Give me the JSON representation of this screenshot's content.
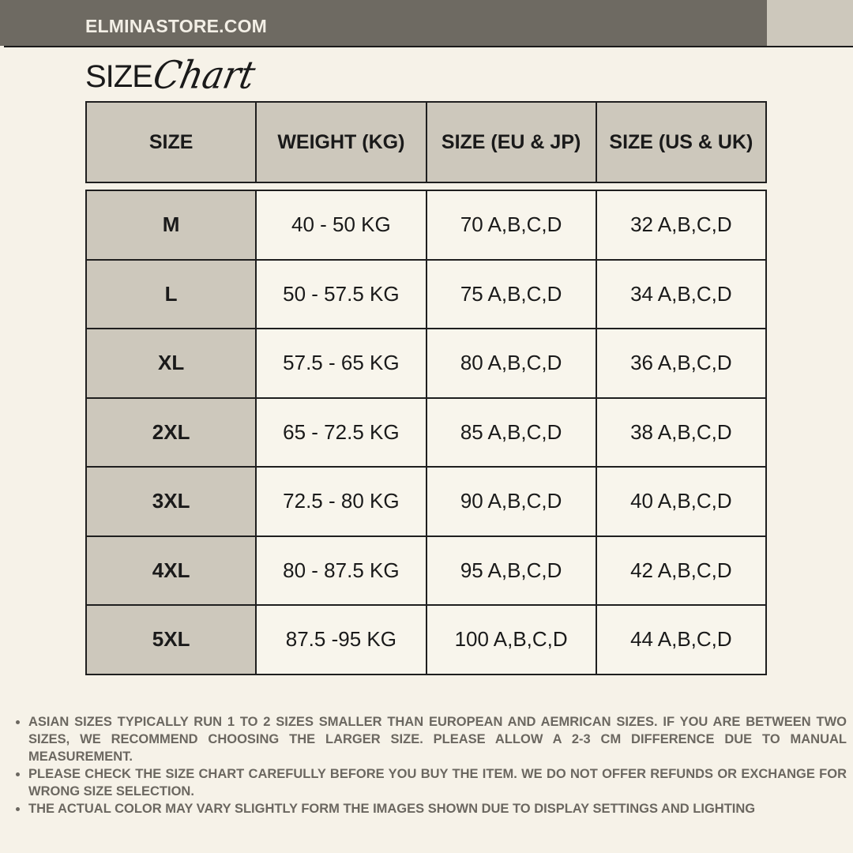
{
  "brand": "ELMINASTORE.COM",
  "title": {
    "size": "SIZE",
    "chart": "Chart"
  },
  "colors": {
    "topbar": "#6e6a62",
    "accent": "#cdc8bc",
    "background": "#f6f2e8",
    "notes": "#6b6760"
  },
  "table": {
    "headers": [
      "SIZE",
      "WEIGHT (KG)",
      "SIZE (EU & JP)",
      "SIZE (US & UK)"
    ],
    "rows": [
      [
        "M",
        "40 - 50 KG",
        "70 A,B,C,D",
        "32 A,B,C,D"
      ],
      [
        "L",
        "50 - 57.5 KG",
        "75 A,B,C,D",
        "34 A,B,C,D"
      ],
      [
        "XL",
        "57.5 - 65 KG",
        "80 A,B,C,D",
        "36 A,B,C,D"
      ],
      [
        "2XL",
        "65 - 72.5 KG",
        "85 A,B,C,D",
        "38 A,B,C,D"
      ],
      [
        "3XL",
        "72.5 - 80 KG",
        "90 A,B,C,D",
        "40 A,B,C,D"
      ],
      [
        "4XL",
        "80 - 87.5 KG",
        "95 A,B,C,D",
        "42 A,B,C,D"
      ],
      [
        "5XL",
        "87.5 -95 KG",
        "100 A,B,C,D",
        "44 A,B,C,D"
      ]
    ]
  },
  "notes": [
    "ASIAN SIZES TYPICALLY RUN 1 TO 2 SIZES SMALLER THAN EUROPEAN AND AEMRICAN SIZES. IF YOU ARE BETWEEN TWO SIZES, WE RECOMMEND CHOOSING THE LARGER SIZE. PLEASE ALLOW A 2-3 CM DIFFERENCE DUE TO MANUAL MEASUREMENT.",
    "PLEASE CHECK THE SIZE CHART CAREFULLY BEFORE YOU BUY THE ITEM. WE DO NOT OFFER REFUNDS OR EXCHANGE FOR WRONG SIZE SELECTION.",
    "THE ACTUAL COLOR MAY VARY SLIGHTLY FORM THE IMAGES SHOWN DUE TO DISPLAY SETTINGS AND LIGHTING"
  ]
}
